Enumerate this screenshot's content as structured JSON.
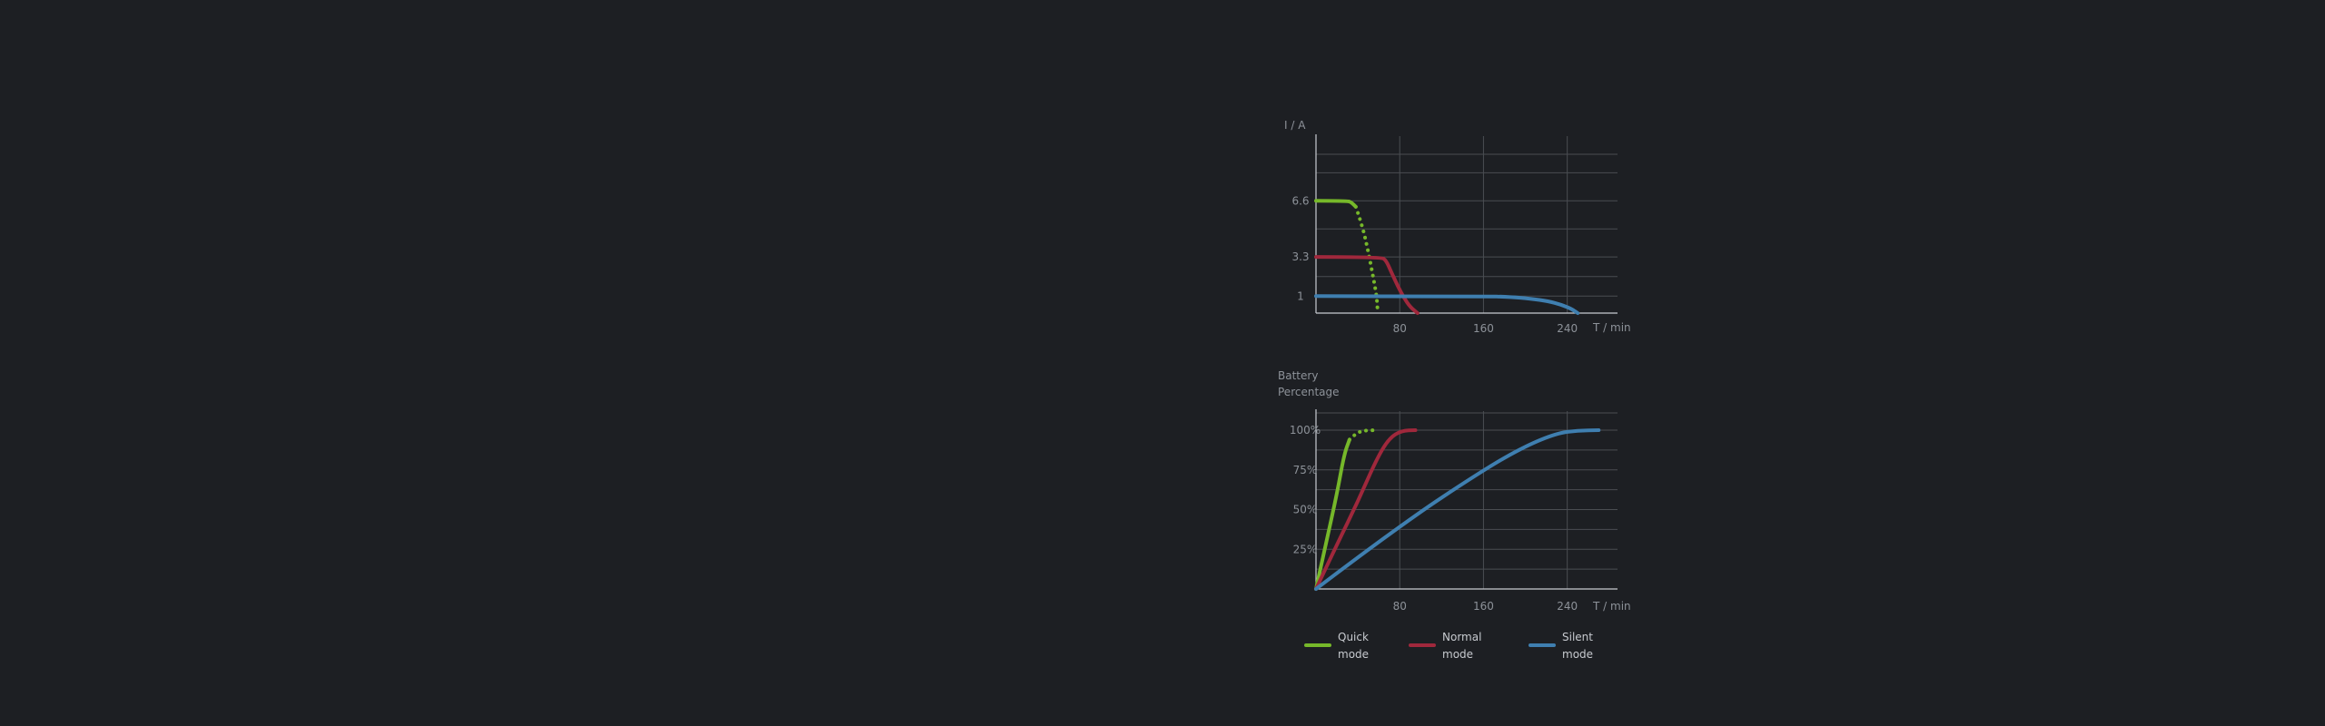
{
  "chart_data": [
    {
      "type": "line",
      "ylabel": "I / A",
      "xlabel": "T / min",
      "x_ticks": [
        80,
        160,
        240
      ],
      "y_ticks": [
        {
          "value": 6.6,
          "label": "6.6"
        },
        {
          "value": 3.3,
          "label": "3.3"
        },
        {
          "value": 1,
          "label": "1"
        }
      ],
      "xlim": [
        0,
        288
      ],
      "ylim": [
        0,
        10.4
      ],
      "grid": true,
      "series": [
        {
          "name": "Quick mode",
          "color": "#76b82a",
          "segments": [
            {
              "style": "solid",
              "points": [
                [
                  0,
                  6.6
                ],
                [
                  30,
                  6.6
                ],
                [
                  34,
                  6.5
                ],
                [
                  38,
                  6.25
                ]
              ]
            },
            {
              "style": "dotted",
              "points": [
                [
                  38,
                  6.25
                ],
                [
                  44,
                  5.2
                ],
                [
                  50,
                  3.6
                ],
                [
                  55,
                  2.0
                ],
                [
                  58,
                  1.0
                ],
                [
                  59,
                  0
                ]
              ]
            }
          ]
        },
        {
          "name": "Normal mode",
          "color": "#a0283c",
          "segments": [
            {
              "style": "solid",
              "points": [
                [
                  0,
                  3.3
                ],
                [
                  62,
                  3.3
                ],
                [
                  67,
                  3.1
                ],
                [
                  72,
                  2.4
                ],
                [
                  78,
                  1.6
                ],
                [
                  84,
                  0.9
                ],
                [
                  90,
                  0.35
                ],
                [
                  97,
                  0
                ]
              ]
            }
          ]
        },
        {
          "name": "Silent mode",
          "color": "#3f7fb0",
          "segments": [
            {
              "style": "solid",
              "points": [
                [
                  0,
                  1.0
                ],
                [
                  160,
                  1.0
                ],
                [
                  185,
                  0.95
                ],
                [
                  205,
                  0.85
                ],
                [
                  222,
                  0.7
                ],
                [
                  234,
                  0.5
                ],
                [
                  244,
                  0.25
                ],
                [
                  250,
                  0
                ]
              ]
            }
          ]
        }
      ]
    },
    {
      "type": "line",
      "ylabel": "Battery\nPercentage",
      "xlabel": "T / min",
      "x_ticks": [
        80,
        160,
        240
      ],
      "y_ticks": [
        {
          "value": 100,
          "label": "100%"
        },
        {
          "value": 75,
          "label": "75%"
        },
        {
          "value": 50,
          "label": "50%"
        },
        {
          "value": 25,
          "label": "25%"
        }
      ],
      "xlim": [
        0,
        288
      ],
      "ylim": [
        0,
        112
      ],
      "grid": true,
      "series": [
        {
          "name": "Quick mode",
          "color": "#76b82a",
          "segments": [
            {
              "style": "solid",
              "points": [
                [
                  0,
                  0
                ],
                [
                  10,
                  30
                ],
                [
                  20,
                  60
                ],
                [
                  27,
                  85
                ],
                [
                  32,
                  94
                ]
              ]
            },
            {
              "style": "dotted",
              "points": [
                [
                  32,
                  94
                ],
                [
                  38,
                  98
                ],
                [
                  46,
                  99.8
                ],
                [
                  58,
                  100
                ]
              ]
            }
          ]
        },
        {
          "name": "Normal mode",
          "color": "#a0283c",
          "segments": [
            {
              "style": "solid",
              "points": [
                [
                  0,
                  0
                ],
                [
                  20,
                  28
                ],
                [
                  40,
                  55
                ],
                [
                  58,
                  82
                ],
                [
                  70,
                  95
                ],
                [
                  82,
                  99.7
                ],
                [
                  95,
                  100
                ]
              ]
            }
          ]
        },
        {
          "name": "Silent mode",
          "color": "#3f7fb0",
          "segments": [
            {
              "style": "solid",
              "points": [
                [
                  0,
                  0
                ],
                [
                  80,
                  40
                ],
                [
                  160,
                  75
                ],
                [
                  200,
                  90
                ],
                [
                  230,
                  98
                ],
                [
                  250,
                  99.8
                ],
                [
                  270,
                  100
                ]
              ]
            }
          ]
        }
      ]
    }
  ],
  "legend": [
    {
      "line1": "Quick",
      "line2": "mode",
      "color": "#76b82a"
    },
    {
      "line1": "Normal",
      "line2": "mode",
      "color": "#a0283c"
    },
    {
      "line1": "Silent",
      "line2": "mode",
      "color": "#3f7fb0"
    }
  ]
}
